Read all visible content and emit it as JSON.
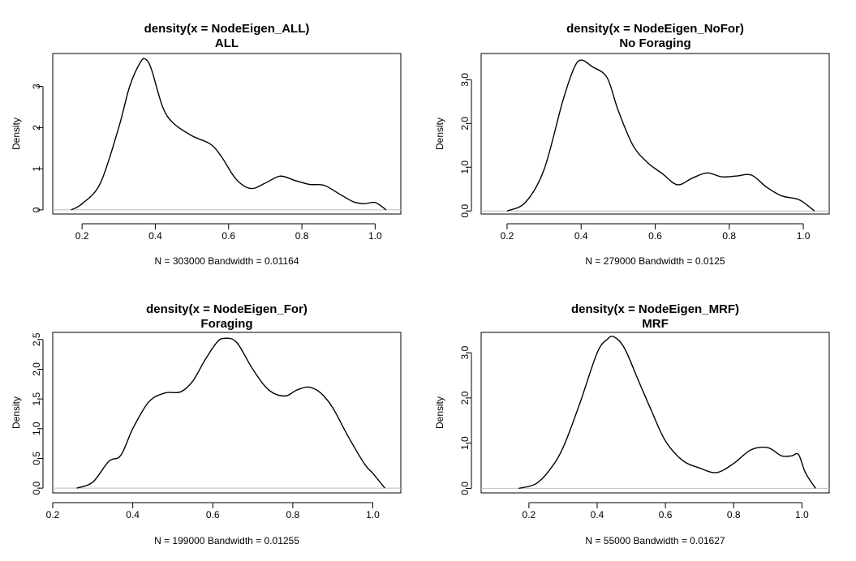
{
  "chart_data": [
    {
      "type": "line",
      "title": "density(x = NodeEigen_ALL)",
      "subtitle": "ALL",
      "xlabel": "N = 303000   Bandwidth = 0.01164",
      "ylabel": "Density",
      "xlim": [
        0.12,
        1.07
      ],
      "ylim": [
        -0.1,
        3.8
      ],
      "xticks": [
        0.2,
        0.4,
        0.6,
        0.8,
        1.0
      ],
      "xtick_labels": [
        "0.2",
        "0.4",
        "0.6",
        "0.8",
        "1.0"
      ],
      "yticks": [
        0,
        1,
        2,
        3
      ],
      "ytick_labels": [
        "0",
        "1",
        "2",
        "3"
      ],
      "zero_line": true,
      "x": [
        0.17,
        0.2,
        0.25,
        0.3,
        0.33,
        0.36,
        0.375,
        0.39,
        0.42,
        0.45,
        0.5,
        0.55,
        0.58,
        0.62,
        0.66,
        0.7,
        0.74,
        0.78,
        0.82,
        0.86,
        0.9,
        0.94,
        0.97,
        1.0,
        1.03
      ],
      "y": [
        0.0,
        0.15,
        0.65,
        2.0,
        3.0,
        3.6,
        3.65,
        3.4,
        2.5,
        2.1,
        1.8,
        1.6,
        1.3,
        0.75,
        0.52,
        0.65,
        0.82,
        0.72,
        0.62,
        0.6,
        0.4,
        0.2,
        0.15,
        0.18,
        0.0
      ]
    },
    {
      "type": "line",
      "title": "density(x = NodeEigen_NoFor)",
      "subtitle": "No Foraging",
      "xlabel": "N = 279000   Bandwidth = 0.0125",
      "ylabel": "Density",
      "xlim": [
        0.13,
        1.07
      ],
      "ylim": [
        -0.07,
        3.6
      ],
      "xticks": [
        0.2,
        0.4,
        0.6,
        0.8,
        1.0
      ],
      "xtick_labels": [
        "0.2",
        "0.4",
        "0.6",
        "0.8",
        "1.0"
      ],
      "yticks": [
        0,
        1,
        2,
        3
      ],
      "ytick_labels": [
        "0.0",
        "1.0",
        "2.0",
        "3.0"
      ],
      "zero_line": true,
      "x": [
        0.2,
        0.25,
        0.3,
        0.35,
        0.38,
        0.4,
        0.43,
        0.47,
        0.5,
        0.54,
        0.58,
        0.62,
        0.66,
        0.7,
        0.74,
        0.78,
        0.82,
        0.86,
        0.9,
        0.94,
        0.98,
        1.0,
        1.03
      ],
      "y": [
        0.0,
        0.2,
        0.95,
        2.5,
        3.25,
        3.45,
        3.3,
        3.05,
        2.3,
        1.5,
        1.1,
        0.85,
        0.6,
        0.75,
        0.87,
        0.78,
        0.8,
        0.82,
        0.55,
        0.35,
        0.28,
        0.2,
        0.0
      ]
    },
    {
      "type": "line",
      "title": "density(x = NodeEigen_For)",
      "subtitle": "Foraging",
      "xlabel": "N = 199000   Bandwidth = 0.01255",
      "ylabel": "Density",
      "xlim": [
        0.2,
        1.07
      ],
      "ylim": [
        -0.08,
        2.62
      ],
      "xticks": [
        0.2,
        0.4,
        0.6,
        0.8,
        1.0
      ],
      "xtick_labels": [
        "0.2",
        "0.4",
        "0.6",
        "0.8",
        "1.0"
      ],
      "yticks": [
        0,
        0.5,
        1.0,
        1.5,
        2.0,
        2.5
      ],
      "ytick_labels": [
        "0.0",
        "0.5",
        "1.0",
        "1.5",
        "2.0",
        "2.5"
      ],
      "zero_line": true,
      "x": [
        0.26,
        0.3,
        0.34,
        0.37,
        0.4,
        0.44,
        0.48,
        0.52,
        0.55,
        0.58,
        0.61,
        0.63,
        0.66,
        0.7,
        0.74,
        0.78,
        0.81,
        0.84,
        0.87,
        0.9,
        0.94,
        0.98,
        1.0,
        1.03
      ],
      "y": [
        0.0,
        0.1,
        0.45,
        0.55,
        1.0,
        1.45,
        1.6,
        1.62,
        1.8,
        2.15,
        2.45,
        2.52,
        2.45,
        2.0,
        1.65,
        1.55,
        1.65,
        1.7,
        1.6,
        1.35,
        0.85,
        0.4,
        0.25,
        0.0
      ]
    },
    {
      "type": "line",
      "title": "density(x = NodeEigen_MRF)",
      "subtitle": "MRF",
      "xlabel": "N = 55000   Bandwidth = 0.01627",
      "ylabel": "Density",
      "xlim": [
        0.06,
        1.08
      ],
      "ylim": [
        -0.1,
        3.45
      ],
      "xticks": [
        0.2,
        0.4,
        0.6,
        0.8,
        1.0
      ],
      "xtick_labels": [
        "0.2",
        "0.4",
        "0.6",
        "0.8",
        "1.0"
      ],
      "yticks": [
        0,
        1,
        2,
        3
      ],
      "ytick_labels": [
        "0.0",
        "1.0",
        "2.0",
        "3.0"
      ],
      "zero_line": true,
      "x": [
        0.17,
        0.22,
        0.26,
        0.3,
        0.35,
        0.4,
        0.43,
        0.45,
        0.48,
        0.52,
        0.56,
        0.6,
        0.65,
        0.7,
        0.75,
        0.8,
        0.85,
        0.9,
        0.94,
        0.97,
        0.99,
        1.01,
        1.04
      ],
      "y": [
        0.0,
        0.1,
        0.4,
        0.9,
        1.9,
        3.0,
        3.3,
        3.35,
        3.1,
        2.4,
        1.7,
        1.05,
        0.62,
        0.45,
        0.35,
        0.55,
        0.85,
        0.9,
        0.72,
        0.72,
        0.75,
        0.35,
        0.0
      ]
    }
  ]
}
